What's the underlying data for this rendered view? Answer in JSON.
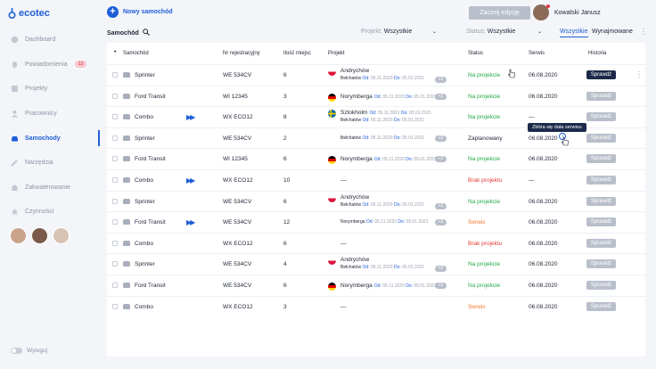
{
  "app": {
    "logo": "ecotec"
  },
  "sidebar": {
    "items": [
      {
        "label": "Dashboard",
        "icon": "dashboard-icon"
      },
      {
        "label": "Powiadomienia",
        "icon": "bell-icon",
        "badge": "12"
      },
      {
        "label": "Projekty",
        "icon": "folder-icon"
      },
      {
        "label": "Pracownicy",
        "icon": "user-icon"
      },
      {
        "label": "Samochody",
        "icon": "car-icon"
      },
      {
        "label": "Narzędzia",
        "icon": "wrench-icon"
      },
      {
        "label": "Zakwaterowanie",
        "icon": "home-icon"
      },
      {
        "label": "Czynności",
        "icon": "tasks-icon"
      }
    ],
    "logout": "Wyloguj"
  },
  "topbar": {
    "add_label": "Nowy samochód",
    "edit_label": "Zacznij edycję",
    "user_name": "Kowalski Janusz"
  },
  "filters": {
    "title": "Samochód",
    "project_label": "Projekt:",
    "project_value": "Wszystkie",
    "status_label": "Status:",
    "status_value": "Wszystkie",
    "tab_all": "Wszystkie",
    "tab_rented": "Wynajmowane"
  },
  "table": {
    "headers": {
      "car": "Samochód",
      "reg": "Nr rejestracyjny",
      "seats": "Ilość miejsc",
      "project": "Projekt",
      "status": "Status",
      "service": "Serwis",
      "history": "Historia"
    },
    "history_label": "Sprawdź",
    "from_label": "Od:",
    "to_label": "Do:",
    "rows": [
      {
        "car": "Sprinter",
        "reg": "WE 534CV",
        "seats": "6",
        "city": "Andrychów",
        "flag": "pl",
        "dates": [
          [
            "Bełchatów",
            "05.11.2020",
            "05.01.2021"
          ]
        ],
        "more": "+2",
        "status": "Na projekcie",
        "status_color": "green",
        "service": "06.08.2020",
        "history_active": true,
        "arrows": false
      },
      {
        "car": "Ford Transit",
        "reg": "WI 12345",
        "seats": "3",
        "city": "Norymberga",
        "flag": "de",
        "inline_dates": [
          "05.11.2020",
          "05.01.2021"
        ],
        "more": "+2",
        "status": "Na projekcie",
        "status_color": "green",
        "service": "06.08.2020",
        "history_active": false,
        "arrows": false
      },
      {
        "car": "Combo",
        "reg": "WX ECO12",
        "seats": "8",
        "city": "Sztokholm",
        "flag": "se",
        "city_dates": [
          "05.11.2021",
          "05.01.2021"
        ],
        "dates": [
          [
            "Bełchatów",
            "05.11.2020",
            "05.01.2021"
          ]
        ],
        "status": "Na projekcie",
        "status_color": "green",
        "service": "—",
        "history_active": false,
        "arrows": true
      },
      {
        "car": "Sprinter",
        "reg": "WE 534CV",
        "seats": "2",
        "city": "",
        "flag": "",
        "dates": [
          [
            "Bełchatów",
            "05.11.2020",
            "05.01.2021"
          ]
        ],
        "more": "+2",
        "status": "Zaplanowany",
        "status_color": "dark",
        "service": "06.08.2020",
        "history_active": false,
        "arrows": false
      },
      {
        "car": "Ford Transit",
        "reg": "WI 12345",
        "seats": "6",
        "city": "Norymberga",
        "flag": "de",
        "inline_dates": [
          "05.11.2020",
          "05.01.2021"
        ],
        "more": "+2",
        "status": "Na projekcie",
        "status_color": "green",
        "service": "06.08.2020",
        "history_active": false,
        "arrows": false
      },
      {
        "car": "Combo",
        "reg": "WX ECO12",
        "seats": "10",
        "city": "—",
        "flag": "",
        "status": "Brak projektu",
        "status_color": "red",
        "service": "—",
        "history_active": false,
        "arrows": true
      },
      {
        "car": "Sprinter",
        "reg": "WE 534CV",
        "seats": "6",
        "city": "Andrychów",
        "flag": "pl",
        "dates": [
          [
            "Bełchatów",
            "05.11.2020",
            "05.01.2021"
          ]
        ],
        "more": "+2",
        "status": "Na projekcie",
        "status_color": "green",
        "service": "06.08.2020",
        "history_active": false,
        "arrows": false
      },
      {
        "car": "Ford Transit",
        "reg": "WE 534CV",
        "seats": "12",
        "city": "",
        "flag": "",
        "dates": [
          [
            "Norymberga",
            "05.11.2020",
            "05.01.2021"
          ]
        ],
        "more": "+2",
        "status": "Serwis",
        "status_color": "orange",
        "service": "06.08.2020",
        "history_active": false,
        "arrows": true
      },
      {
        "car": "Combo",
        "reg": "WX ECO12",
        "seats": "6",
        "city": "—",
        "flag": "",
        "status": "Brak projektu",
        "status_color": "red",
        "service": "06.08.2020",
        "history_active": false,
        "arrows": false
      },
      {
        "car": "Sprinter",
        "reg": "WE 534CV",
        "seats": "4",
        "city": "Andrychów",
        "flag": "pl",
        "dates": [
          [
            "Bełchatów",
            "05.11.2020",
            "05.01.2021"
          ]
        ],
        "more": "+2",
        "status": "Na projekcie",
        "status_color": "green",
        "service": "06.08.2020",
        "history_active": false,
        "arrows": false
      },
      {
        "car": "Ford Transit",
        "reg": "WE 534CV",
        "seats": "6",
        "city": "Norymberga",
        "flag": "de",
        "inline_dates": [
          "05.11.2020",
          "05.01.2021"
        ],
        "more": "+2",
        "status": "Na projekcie",
        "status_color": "green",
        "service": "06.08.2020",
        "history_active": false,
        "arrows": false
      },
      {
        "car": "Combo",
        "reg": "WX ECO12",
        "seats": "3",
        "city": "—",
        "flag": "",
        "status": "Serwis",
        "status_color": "orange",
        "service": "06.08.2020",
        "history_active": false,
        "arrows": false
      }
    ]
  },
  "tooltip": {
    "text": "Zbliża się data serwisu"
  },
  "colors": {
    "accent": "#1f5fd6",
    "green": "#22a845",
    "red": "#e23a2f",
    "orange": "#f0762f",
    "dark_button": "#1c2a4a"
  }
}
